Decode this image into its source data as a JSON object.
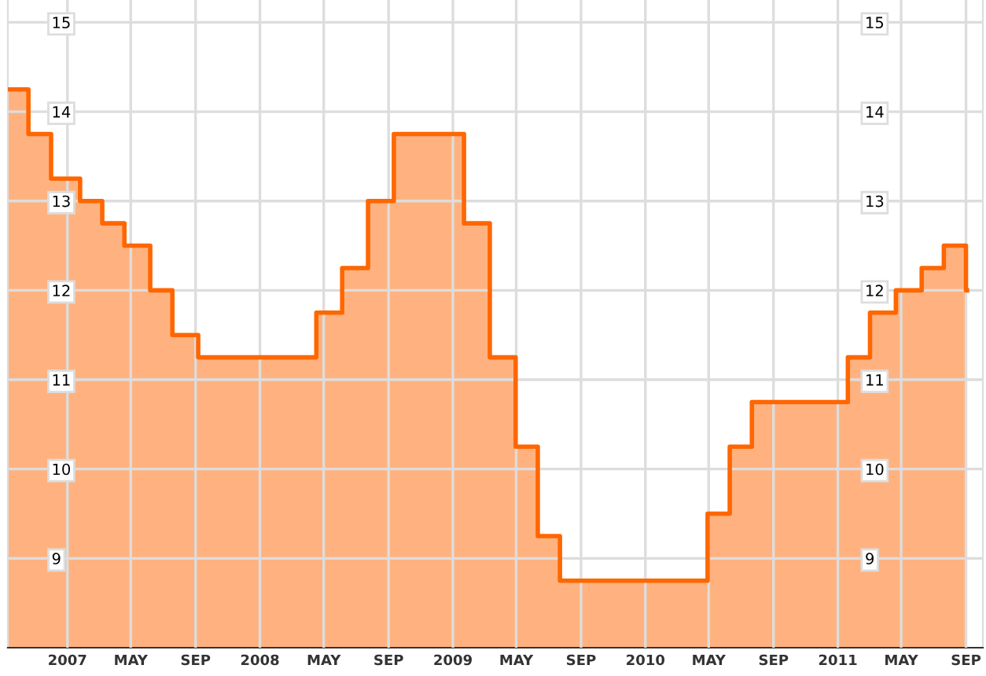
{
  "chart_data": {
    "type": "area",
    "x": [
      "2006-09-10",
      "2006-10-19",
      "2006-10-19",
      "2006-12-01",
      "2006-12-01",
      "2007-01-25",
      "2007-01-25",
      "2007-03-08",
      "2007-03-08",
      "2007-04-19",
      "2007-04-19",
      "2007-06-07",
      "2007-06-07",
      "2007-07-19",
      "2007-07-19",
      "2007-09-06",
      "2007-09-06",
      "2008-04-17",
      "2008-04-17",
      "2008-06-05",
      "2008-06-05",
      "2008-07-24",
      "2008-07-24",
      "2008-09-11",
      "2008-09-11",
      "2009-01-22",
      "2009-01-22",
      "2009-03-12",
      "2009-03-12",
      "2009-04-30",
      "2009-04-30",
      "2009-06-11",
      "2009-06-11",
      "2009-07-23",
      "2009-07-23",
      "2010-04-29",
      "2010-04-29",
      "2010-06-10",
      "2010-06-10",
      "2010-07-22",
      "2010-07-22",
      "2011-01-20",
      "2011-01-20",
      "2011-03-03",
      "2011-03-03",
      "2011-04-21",
      "2011-04-21",
      "2011-06-09",
      "2011-06-09",
      "2011-07-21",
      "2011-07-21",
      "2011-09-01",
      "2011-09-01",
      "2011-09-03"
    ],
    "series": [
      {
        "color": "#ff6600",
        "values": [
          14.25,
          14.25,
          13.75,
          13.75,
          13.25,
          13.25,
          13.0,
          13.0,
          12.75,
          12.75,
          12.5,
          12.5,
          12.0,
          12.0,
          11.5,
          11.5,
          11.25,
          11.25,
          11.75,
          11.75,
          12.25,
          12.25,
          13.0,
          13.0,
          13.75,
          13.75,
          12.75,
          12.75,
          11.25,
          11.25,
          10.25,
          10.25,
          9.25,
          9.25,
          8.75,
          8.75,
          9.5,
          9.5,
          10.25,
          10.25,
          10.75,
          10.75,
          11.25,
          11.25,
          11.75,
          11.75,
          12.0,
          12.0,
          12.25,
          12.25,
          12.5,
          12.5,
          12.0,
          12.0
        ]
      }
    ],
    "xlim": [
      "2006-09-10",
      "2011-10-03"
    ],
    "xticks": [
      {
        "value": "2007-01-01",
        "label": "2007"
      },
      {
        "value": "2007-05-01",
        "label": "MAY"
      },
      {
        "value": "2007-09-01",
        "label": "SEP"
      },
      {
        "value": "2008-01-01",
        "label": "2008"
      },
      {
        "value": "2008-05-01",
        "label": "MAY"
      },
      {
        "value": "2008-09-01",
        "label": "SEP"
      },
      {
        "value": "2009-01-01",
        "label": "2009"
      },
      {
        "value": "2009-05-01",
        "label": "MAY"
      },
      {
        "value": "2009-09-01",
        "label": "SEP"
      },
      {
        "value": "2010-01-01",
        "label": "2010"
      },
      {
        "value": "2010-05-01",
        "label": "MAY"
      },
      {
        "value": "2010-09-01",
        "label": "SEP"
      },
      {
        "value": "2011-01-01",
        "label": "2011"
      },
      {
        "value": "2011-05-01",
        "label": "MAY"
      },
      {
        "value": "2011-09-01",
        "label": "SEP"
      }
    ],
    "ylim": [
      8,
      15.25
    ],
    "yticks": [
      9,
      10,
      11,
      12,
      13,
      14,
      15
    ],
    "y2lim": [
      8,
      15.25
    ],
    "y2ticks": [
      9,
      10,
      11,
      12,
      13,
      14,
      15
    ],
    "grid": true,
    "marker": "none",
    "line_style": "solid"
  }
}
